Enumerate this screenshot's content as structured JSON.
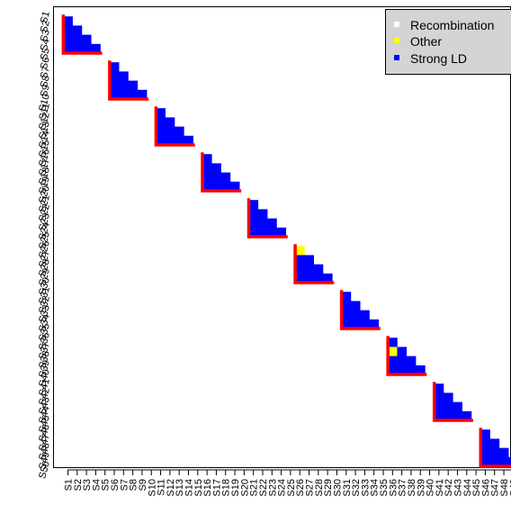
{
  "chart_data": {
    "type": "heatmap",
    "title": "",
    "xlabel": "",
    "ylabel": "",
    "markers": [
      "S1",
      "S2",
      "S3",
      "S4",
      "S5",
      "S6",
      "S7",
      "S8",
      "S9",
      "S10",
      "S11",
      "S12",
      "S13",
      "S14",
      "S15",
      "S16",
      "S17",
      "S18",
      "S19",
      "S20",
      "S21",
      "S22",
      "S23",
      "S24",
      "S25",
      "S26",
      "S27",
      "S28",
      "S29",
      "S30",
      "S31",
      "S32",
      "S33",
      "S34",
      "S35",
      "S36",
      "S37",
      "S38",
      "S39",
      "S40",
      "S41",
      "S42",
      "S43",
      "S44",
      "S45",
      "S46",
      "S47",
      "S48",
      "S49",
      "S50"
    ],
    "categories": [
      {
        "name": "Recombination",
        "color": "#ffffff"
      },
      {
        "name": "Other",
        "color": "#ffff00"
      },
      {
        "name": "Strong LD",
        "color": "#0000ff"
      }
    ],
    "blocks": [
      {
        "start": 1,
        "end": 5
      },
      {
        "start": 6,
        "end": 10
      },
      {
        "start": 11,
        "end": 15
      },
      {
        "start": 16,
        "end": 20
      },
      {
        "start": 21,
        "end": 25
      },
      {
        "start": 26,
        "end": 30
      },
      {
        "start": 31,
        "end": 35
      },
      {
        "start": 36,
        "end": 40
      },
      {
        "start": 41,
        "end": 45
      },
      {
        "start": 46,
        "end": 50
      }
    ],
    "default_pair_category": "Strong LD",
    "pair_exceptions": [
      {
        "row": "S27",
        "col": "S26",
        "category": "Other"
      },
      {
        "row": "S38",
        "col": "S36",
        "category": "Other"
      }
    ],
    "block_outline_color": "#ff0000",
    "legend_position": "top-right"
  }
}
